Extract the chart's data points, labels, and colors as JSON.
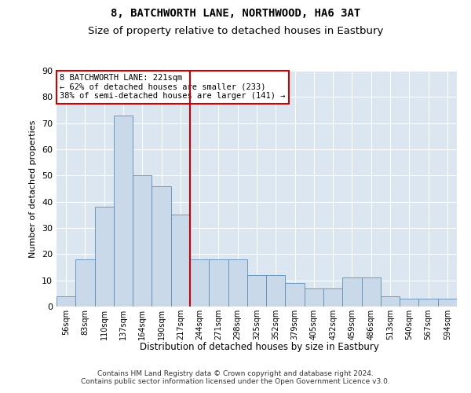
{
  "title1": "8, BATCHWORTH LANE, NORTHWOOD, HA6 3AT",
  "title2": "Size of property relative to detached houses in Eastbury",
  "xlabel": "Distribution of detached houses by size in Eastbury",
  "ylabel": "Number of detached properties",
  "bins": [
    "56sqm",
    "83sqm",
    "110sqm",
    "137sqm",
    "164sqm",
    "190sqm",
    "217sqm",
    "244sqm",
    "271sqm",
    "298sqm",
    "325sqm",
    "352sqm",
    "379sqm",
    "405sqm",
    "432sqm",
    "459sqm",
    "486sqm",
    "513sqm",
    "540sqm",
    "567sqm",
    "594sqm"
  ],
  "values": [
    4,
    18,
    38,
    73,
    50,
    46,
    35,
    18,
    18,
    18,
    12,
    12,
    9,
    7,
    7,
    11,
    11,
    4,
    3,
    3,
    3
  ],
  "bar_color": "#c9d9ea",
  "bar_edge_color": "#5b8db8",
  "vline_index": 7,
  "vline_color": "#cc0000",
  "annotation_text": "8 BATCHWORTH LANE: 221sqm\n← 62% of detached houses are smaller (233)\n38% of semi-detached houses are larger (141) →",
  "annotation_box_color": "#ffffff",
  "annotation_box_edge": "#cc0000",
  "ylim": [
    0,
    90
  ],
  "yticks": [
    0,
    10,
    20,
    30,
    40,
    50,
    60,
    70,
    80,
    90
  ],
  "background_color": "#dce6f0",
  "footer": "Contains HM Land Registry data © Crown copyright and database right 2024.\nContains public sector information licensed under the Open Government Licence v3.0.",
  "title1_fontsize": 10,
  "title2_fontsize": 9.5,
  "xlabel_fontsize": 8.5,
  "ylabel_fontsize": 8
}
